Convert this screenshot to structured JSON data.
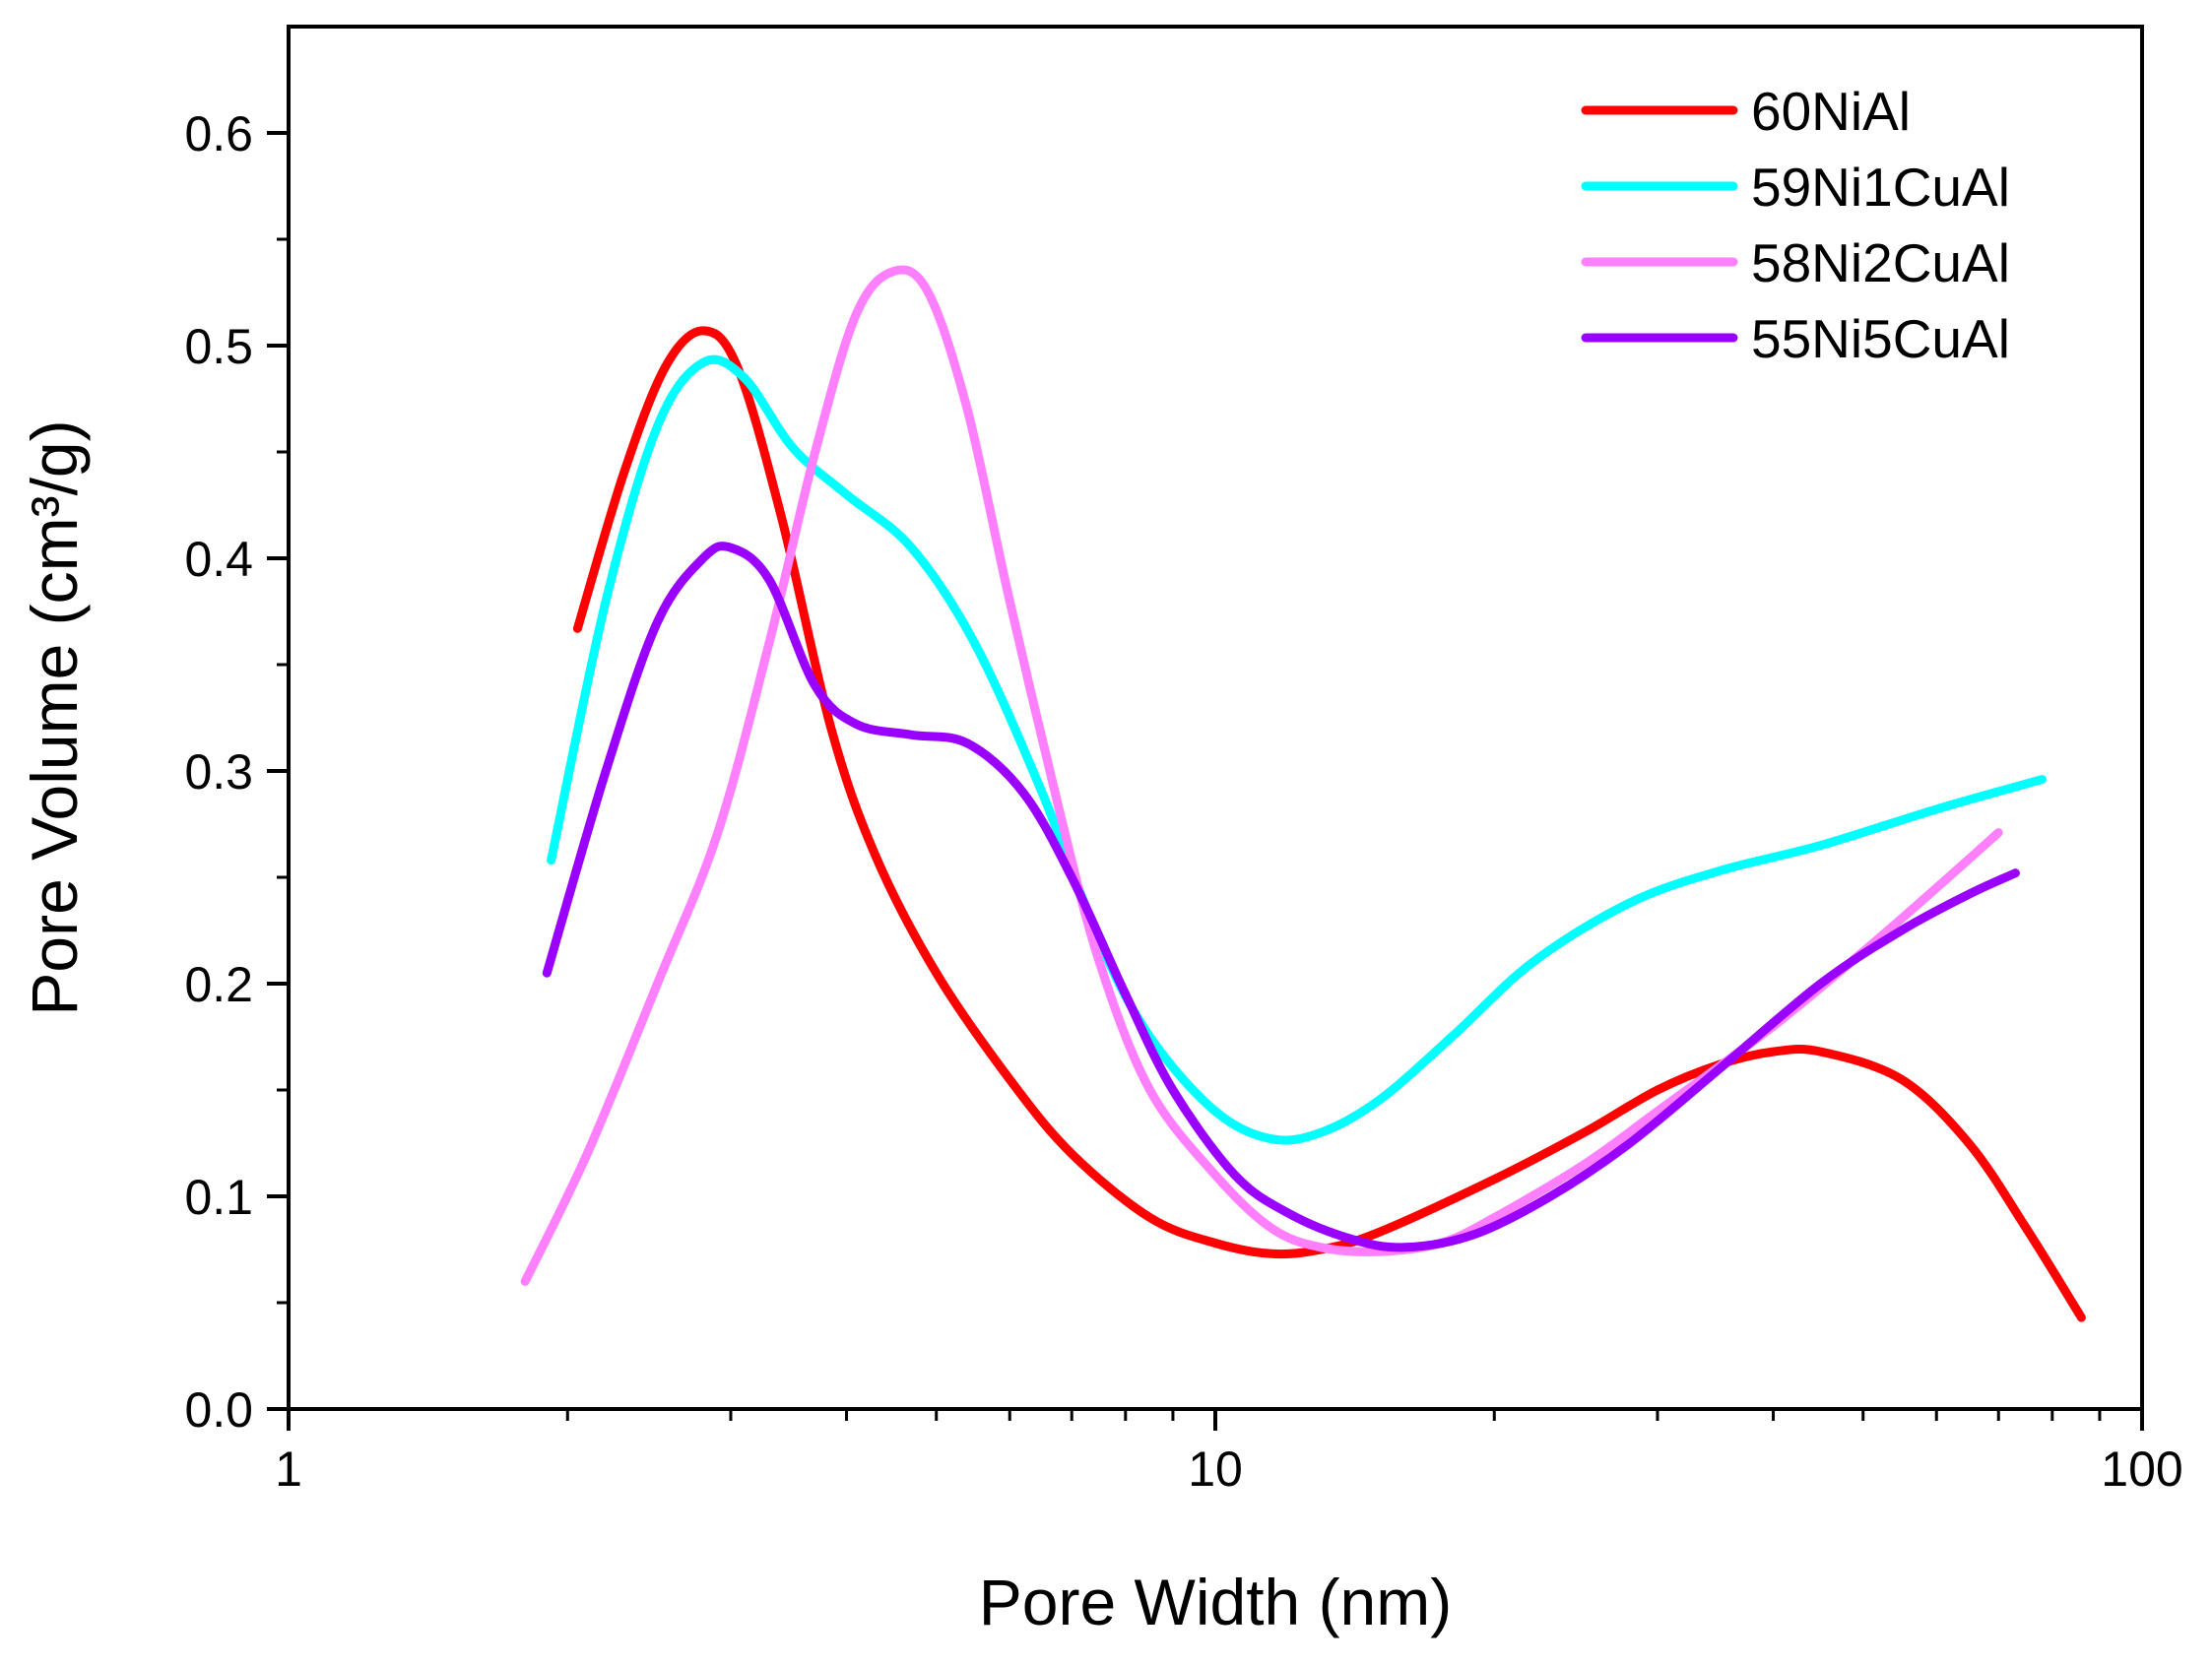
{
  "chart_data": {
    "type": "line",
    "xlabel": "Pore Width (nm)",
    "ylabel": "Pore Volume (cm³/g)",
    "xscale": "log",
    "xlim": [
      1,
      100
    ],
    "ylim": [
      0.0,
      0.65
    ],
    "x_ticks": [
      1,
      10,
      100
    ],
    "x_tick_labels": [
      "1",
      "10",
      "100"
    ],
    "y_ticks": [
      0.0,
      0.1,
      0.2,
      0.3,
      0.4,
      0.5,
      0.6
    ],
    "y_tick_labels": [
      "0.0",
      "0.1",
      "0.2",
      "0.3",
      "0.4",
      "0.5",
      "0.6"
    ],
    "grid": false,
    "legend_position": "top-right",
    "series": [
      {
        "name": "60NiAl",
        "color": "#ff0000",
        "points": [
          [
            2.05,
            0.367
          ],
          [
            2.3,
            0.44
          ],
          [
            2.55,
            0.49
          ],
          [
            2.8,
            0.507
          ],
          [
            3.05,
            0.49
          ],
          [
            3.4,
            0.42
          ],
          [
            3.85,
            0.32
          ],
          [
            4.3,
            0.26
          ],
          [
            5.0,
            0.205
          ],
          [
            6.0,
            0.155
          ],
          [
            7.0,
            0.12
          ],
          [
            8.5,
            0.09
          ],
          [
            10.0,
            0.078
          ],
          [
            11.5,
            0.073
          ],
          [
            13.0,
            0.075
          ],
          [
            15.0,
            0.083
          ],
          [
            20.0,
            0.108
          ],
          [
            25.0,
            0.13
          ],
          [
            30.0,
            0.15
          ],
          [
            35.0,
            0.162
          ],
          [
            40.0,
            0.168
          ],
          [
            45.0,
            0.168
          ],
          [
            55.0,
            0.155
          ],
          [
            65.0,
            0.125
          ],
          [
            75.0,
            0.085
          ],
          [
            86.0,
            0.043
          ]
        ]
      },
      {
        "name": "59Ni1CuAl",
        "color": "#00ffff",
        "points": [
          [
            1.92,
            0.258
          ],
          [
            2.2,
            0.38
          ],
          [
            2.5,
            0.462
          ],
          [
            2.8,
            0.492
          ],
          [
            3.1,
            0.485
          ],
          [
            3.5,
            0.452
          ],
          [
            4.0,
            0.43
          ],
          [
            4.7,
            0.405
          ],
          [
            5.5,
            0.36
          ],
          [
            6.5,
            0.29
          ],
          [
            7.5,
            0.22
          ],
          [
            8.5,
            0.175
          ],
          [
            10.0,
            0.14
          ],
          [
            11.5,
            0.127
          ],
          [
            13.0,
            0.13
          ],
          [
            15.0,
            0.145
          ],
          [
            18.0,
            0.175
          ],
          [
            22.0,
            0.21
          ],
          [
            28.0,
            0.238
          ],
          [
            35.0,
            0.253
          ],
          [
            45.0,
            0.265
          ],
          [
            60.0,
            0.282
          ],
          [
            78.0,
            0.296
          ]
        ]
      },
      {
        "name": "58Ni2CuAl",
        "color": "#ff80ff",
        "points": [
          [
            1.8,
            0.06
          ],
          [
            2.1,
            0.12
          ],
          [
            2.5,
            0.2
          ],
          [
            2.9,
            0.27
          ],
          [
            3.3,
            0.36
          ],
          [
            3.7,
            0.45
          ],
          [
            4.1,
            0.515
          ],
          [
            4.5,
            0.535
          ],
          [
            4.9,
            0.525
          ],
          [
            5.4,
            0.47
          ],
          [
            6.0,
            0.38
          ],
          [
            6.8,
            0.28
          ],
          [
            7.5,
            0.21
          ],
          [
            8.5,
            0.15
          ],
          [
            10.0,
            0.11
          ],
          [
            11.5,
            0.085
          ],
          [
            13.0,
            0.076
          ],
          [
            15.0,
            0.074
          ],
          [
            17.5,
            0.078
          ],
          [
            20.0,
            0.09
          ],
          [
            25.0,
            0.115
          ],
          [
            30.0,
            0.14
          ],
          [
            40.0,
            0.18
          ],
          [
            50.0,
            0.215
          ],
          [
            60.0,
            0.245
          ],
          [
            70.0,
            0.271
          ]
        ]
      },
      {
        "name": "55Ni5CuAl",
        "color": "#9900ff",
        "points": [
          [
            1.9,
            0.205
          ],
          [
            2.2,
            0.3
          ],
          [
            2.5,
            0.37
          ],
          [
            2.8,
            0.4
          ],
          [
            3.0,
            0.405
          ],
          [
            3.3,
            0.39
          ],
          [
            3.7,
            0.34
          ],
          [
            4.1,
            0.322
          ],
          [
            4.7,
            0.317
          ],
          [
            5.4,
            0.313
          ],
          [
            6.2,
            0.29
          ],
          [
            7.0,
            0.25
          ],
          [
            8.0,
            0.195
          ],
          [
            9.0,
            0.15
          ],
          [
            10.5,
            0.11
          ],
          [
            12.0,
            0.092
          ],
          [
            14.0,
            0.08
          ],
          [
            16.0,
            0.076
          ],
          [
            19.0,
            0.082
          ],
          [
            23.0,
            0.1
          ],
          [
            28.0,
            0.125
          ],
          [
            35.0,
            0.16
          ],
          [
            45.0,
            0.2
          ],
          [
            55.0,
            0.225
          ],
          [
            65.0,
            0.242
          ],
          [
            73.0,
            0.252
          ]
        ]
      }
    ]
  }
}
